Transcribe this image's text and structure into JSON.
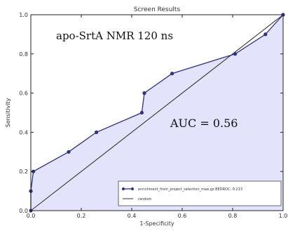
{
  "chart_data": {
    "type": "line",
    "title": "Screen Results",
    "xlabel": "1-Specificity",
    "ylabel": "Sensitivity",
    "xlim": [
      0,
      1
    ],
    "ylim": [
      0,
      1
    ],
    "x_ticks": [
      "0.0",
      "0.2",
      "0.4",
      "0.6",
      "0.8",
      "1.0"
    ],
    "y_ticks": [
      "0.0",
      "0.2",
      "0.4",
      "0.6",
      "0.8",
      "1.0"
    ],
    "grid": false,
    "legend_position": "lower-right",
    "annotations": [
      {
        "text": "apo-SrtA NMR 120 ns"
      },
      {
        "text": "AUC = 0.56"
      }
    ],
    "series": [
      {
        "name": "enrichment_from_project_selection_mae.gz BEDROC: 0.213",
        "color": "#2f2f86",
        "fill": "#e3e3fb",
        "x": [
          0.0,
          0.0,
          0.01,
          0.15,
          0.26,
          0.44,
          0.45,
          0.56,
          0.81,
          0.93,
          1.0
        ],
        "y": [
          0.0,
          0.1,
          0.2,
          0.3,
          0.4,
          0.5,
          0.6,
          0.7,
          0.8,
          0.9,
          1.0
        ]
      },
      {
        "name": "random",
        "color": "#333333",
        "x": [
          0,
          1
        ],
        "y": [
          0,
          1
        ]
      }
    ]
  }
}
